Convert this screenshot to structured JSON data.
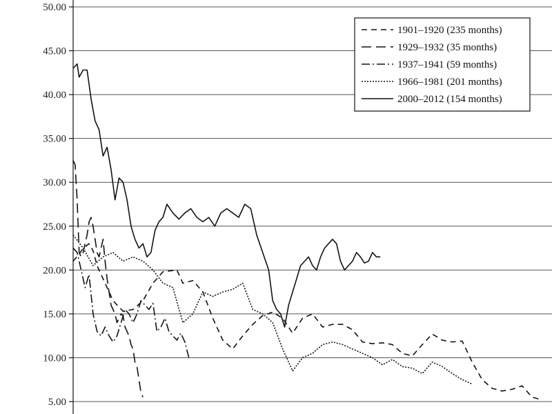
{
  "chart_data": {
    "type": "line",
    "title": "",
    "xlabel": "",
    "ylabel": "",
    "ylim": [
      5,
      50
    ],
    "xlim": [
      0,
      240
    ],
    "yticks": [
      "5.00",
      "10.00",
      "15.00",
      "20.00",
      "25.00",
      "30.00",
      "35.00",
      "40.00",
      "45.00",
      "50.00"
    ],
    "grid": "horizontal",
    "legend_position": "top-right",
    "series": [
      {
        "name": "1901–1920 (235 months)",
        "dash": "8,6",
        "x": [
          0,
          3,
          5,
          8,
          10,
          12,
          15,
          20,
          25,
          30,
          35,
          40,
          45,
          52,
          55,
          60,
          65,
          70,
          75,
          80,
          85,
          90,
          95,
          100,
          105,
          110,
          115,
          120,
          125,
          130,
          135,
          140,
          145,
          150,
          155,
          160,
          165,
          170,
          175,
          180,
          185,
          190,
          195,
          200,
          205,
          210,
          215,
          220,
          225,
          230,
          235
        ],
        "y": [
          21.0,
          21.8,
          22.5,
          23.0,
          22.2,
          20.5,
          19.0,
          16.5,
          15.3,
          15.5,
          16.5,
          18.5,
          19.8,
          20.0,
          18.5,
          18.8,
          17.5,
          14.5,
          12.0,
          11.0,
          12.5,
          13.8,
          14.8,
          15.2,
          14.5,
          12.8,
          14.5,
          15.0,
          13.5,
          13.8,
          13.8,
          13.2,
          11.8,
          11.6,
          11.7,
          11.5,
          10.5,
          10.2,
          11.5,
          12.7,
          12.0,
          11.8,
          11.9,
          9.5,
          7.5,
          6.5,
          6.2,
          6.4,
          6.8,
          5.5,
          5.2
        ]
      },
      {
        "name": "1929–1932 (35 months)",
        "dash": "14,7",
        "x": [
          0,
          1,
          2,
          3,
          4,
          5,
          6,
          7,
          8,
          9,
          10,
          11,
          12,
          13,
          14,
          15,
          16,
          17,
          18,
          19,
          20,
          21,
          22,
          23,
          24,
          25,
          26,
          27,
          28,
          29,
          30,
          31,
          32,
          33,
          34,
          35
        ],
        "y": [
          32.5,
          32.0,
          28.0,
          22.0,
          21.5,
          22.0,
          23.0,
          24.0,
          25.5,
          26.0,
          25.0,
          23.5,
          22.0,
          21.5,
          22.5,
          23.5,
          21.0,
          19.0,
          17.5,
          16.0,
          15.5,
          15.0,
          14.0,
          14.5,
          15.0,
          14.8,
          13.5,
          13.0,
          12.5,
          11.5,
          11.0,
          9.5,
          9.0,
          7.5,
          6.0,
          5.5
        ]
      },
      {
        "name": "1937–1941 (59 months)",
        "dash": "12,4,2,4",
        "x": [
          0,
          2,
          4,
          6,
          8,
          10,
          12,
          14,
          16,
          18,
          20,
          22,
          24,
          26,
          28,
          30,
          32,
          34,
          36,
          38,
          40,
          42,
          44,
          46,
          48,
          50,
          52,
          54,
          56,
          58
        ],
        "y": [
          22.5,
          22.0,
          20.0,
          18.0,
          19.5,
          15.0,
          13.0,
          12.5,
          13.5,
          12.5,
          11.8,
          12.5,
          14.0,
          15.5,
          15.0,
          14.0,
          15.0,
          16.5,
          16.0,
          15.5,
          16.2,
          13.0,
          13.5,
          14.5,
          13.0,
          12.5,
          12.0,
          12.8,
          11.8,
          10.0
        ]
      },
      {
        "name": "1966–1981 (201 months)",
        "dash": "2,2",
        "x": [
          0,
          5,
          10,
          15,
          20,
          25,
          30,
          35,
          40,
          45,
          50,
          55,
          60,
          65,
          70,
          75,
          80,
          85,
          90,
          95,
          100,
          105,
          110,
          115,
          120,
          125,
          130,
          135,
          140,
          145,
          150,
          155,
          160,
          165,
          170,
          175,
          180,
          185,
          190,
          195,
          200
        ],
        "y": [
          24.0,
          22.5,
          20.5,
          21.5,
          22.0,
          21.0,
          21.5,
          21.0,
          20.0,
          18.5,
          18.0,
          14.0,
          15.0,
          17.5,
          17.0,
          17.5,
          17.8,
          18.5,
          15.5,
          15.0,
          14.0,
          11.0,
          8.5,
          10.0,
          10.5,
          11.5,
          11.8,
          11.5,
          11.0,
          10.5,
          10.0,
          9.2,
          9.8,
          9.0,
          8.8,
          8.2,
          9.5,
          9.0,
          8.2,
          7.5,
          7.0
        ]
      },
      {
        "name": "2000–2012 (154 months)",
        "dash": "",
        "x": [
          0,
          2,
          3,
          5,
          7,
          9,
          11,
          13,
          15,
          17,
          19,
          21,
          23,
          25,
          27,
          29,
          31,
          33,
          35,
          37,
          39,
          41,
          43,
          45,
          47,
          50,
          53,
          56,
          59,
          62,
          65,
          68,
          71,
          74,
          77,
          80,
          83,
          86,
          89,
          92,
          95,
          98,
          100,
          102,
          104,
          106,
          108,
          110,
          112,
          114,
          116,
          118,
          120,
          122,
          124,
          126,
          128,
          130,
          132,
          134,
          136,
          138,
          140,
          142,
          144,
          146,
          148,
          150,
          152,
          154
        ],
        "y": [
          43.0,
          43.5,
          42.0,
          42.8,
          42.8,
          39.5,
          37.0,
          36.0,
          33.0,
          34.0,
          31.5,
          28.0,
          30.5,
          30.0,
          28.0,
          25.0,
          23.5,
          22.5,
          23.0,
          21.5,
          22.0,
          24.5,
          25.5,
          26.0,
          27.5,
          26.5,
          25.8,
          26.5,
          27.0,
          26.0,
          25.5,
          26.0,
          25.0,
          26.5,
          27.0,
          26.5,
          26.0,
          27.5,
          27.0,
          24.0,
          22.0,
          20.0,
          16.5,
          15.5,
          15.0,
          13.5,
          16.0,
          17.5,
          19.0,
          20.5,
          21.0,
          21.5,
          20.5,
          20.0,
          21.5,
          22.5,
          23.0,
          23.5,
          23.0,
          21.0,
          20.0,
          20.5,
          21.0,
          22.0,
          21.5,
          20.8,
          21.0,
          22.0,
          21.5,
          21.5
        ]
      }
    ]
  }
}
